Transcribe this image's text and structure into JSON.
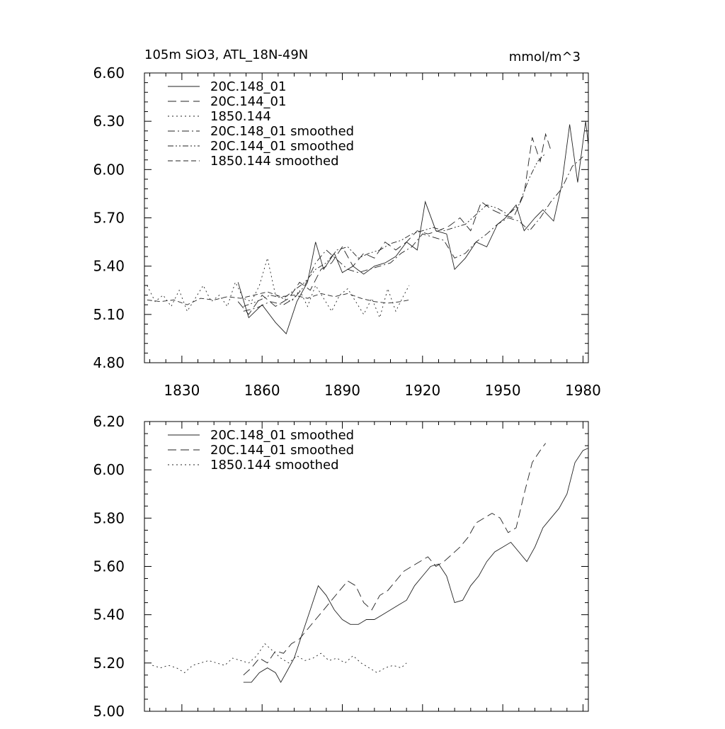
{
  "header": {
    "title": "105m SiO3, ATL_18N-49N",
    "units": "mmol/m^3"
  },
  "chart_data": [
    {
      "type": "line",
      "title": "105m SiO3, ATL_18N-49N",
      "units_label": "mmol/m^3",
      "xlim": [
        1816,
        1982
      ],
      "ylim": [
        4.8,
        6.6
      ],
      "xticks": [
        1830,
        1860,
        1890,
        1920,
        1950,
        1980
      ],
      "xtick_labels": [
        "1830",
        "1860",
        "1890",
        "1920",
        "1950",
        "1980"
      ],
      "yticks": [
        4.8,
        5.1,
        5.4,
        5.7,
        6.0,
        6.3,
        6.6
      ],
      "ytick_labels": [
        "4.80",
        "5.10",
        "5.40",
        "5.70",
        "6.00",
        "6.30",
        "6.60"
      ],
      "legend_position": "top-left",
      "series": [
        {
          "name": "20C.148_01",
          "style": "solid",
          "x": [
            1851,
            1855,
            1860,
            1865,
            1869,
            1873,
            1877,
            1880,
            1883,
            1887,
            1890,
            1894,
            1898,
            1902,
            1906,
            1910,
            1914,
            1918,
            1921,
            1925,
            1929,
            1932,
            1936,
            1940,
            1944,
            1948,
            1951,
            1955,
            1958,
            1962,
            1965,
            1969,
            1972,
            1975,
            1978,
            1981,
            1982
          ],
          "y": [
            5.3,
            5.08,
            5.16,
            5.05,
            4.98,
            5.18,
            5.3,
            5.55,
            5.38,
            5.48,
            5.36,
            5.4,
            5.35,
            5.4,
            5.42,
            5.46,
            5.55,
            5.5,
            5.8,
            5.62,
            5.6,
            5.38,
            5.45,
            5.55,
            5.52,
            5.66,
            5.7,
            5.78,
            5.62,
            5.7,
            5.75,
            5.68,
            5.9,
            6.28,
            5.92,
            6.3,
            6.15
          ]
        },
        {
          "name": "20C.144_01",
          "style": "dash",
          "x": [
            1851,
            1855,
            1860,
            1865,
            1870,
            1874,
            1878,
            1882,
            1886,
            1890,
            1894,
            1898,
            1902,
            1906,
            1910,
            1914,
            1918,
            1922,
            1926,
            1930,
            1934,
            1938,
            1942,
            1946,
            1950,
            1954,
            1958,
            1961,
            1964,
            1966,
            1968
          ],
          "y": [
            5.18,
            5.1,
            5.22,
            5.15,
            5.2,
            5.3,
            5.25,
            5.38,
            5.42,
            5.52,
            5.4,
            5.48,
            5.45,
            5.55,
            5.5,
            5.55,
            5.62,
            5.6,
            5.62,
            5.65,
            5.7,
            5.62,
            5.8,
            5.75,
            5.72,
            5.7,
            5.85,
            6.2,
            6.05,
            6.22,
            6.12
          ]
        },
        {
          "name": "1850.144",
          "style": "dot",
          "x": [
            1817,
            1820,
            1823,
            1826,
            1829,
            1832,
            1835,
            1838,
            1841,
            1844,
            1847,
            1850,
            1853,
            1856,
            1859,
            1862,
            1865,
            1868,
            1871,
            1874,
            1877,
            1880,
            1883,
            1886,
            1889,
            1892,
            1895,
            1898,
            1901,
            1904,
            1907,
            1910,
            1913,
            1915
          ],
          "y": [
            5.28,
            5.18,
            5.22,
            5.15,
            5.25,
            5.12,
            5.2,
            5.28,
            5.18,
            5.22,
            5.15,
            5.3,
            5.2,
            5.18,
            5.28,
            5.45,
            5.22,
            5.2,
            5.18,
            5.25,
            5.15,
            5.28,
            5.2,
            5.12,
            5.22,
            5.26,
            5.18,
            5.1,
            5.2,
            5.08,
            5.26,
            5.12,
            5.22,
            5.28
          ]
        },
        {
          "name": "20C.148_01 smoothed",
          "style": "dashdot",
          "x": [
            1853,
            1858,
            1863,
            1868,
            1872,
            1876,
            1880,
            1884,
            1888,
            1892,
            1896,
            1900,
            1904,
            1908,
            1912,
            1916,
            1920,
            1924,
            1928,
            1932,
            1936,
            1940,
            1944,
            1948,
            1952,
            1956,
            1960,
            1964,
            1968,
            1972,
            1976,
            1980
          ],
          "y": [
            5.12,
            5.14,
            5.18,
            5.16,
            5.2,
            5.28,
            5.42,
            5.5,
            5.44,
            5.38,
            5.36,
            5.38,
            5.4,
            5.42,
            5.48,
            5.52,
            5.6,
            5.58,
            5.56,
            5.45,
            5.48,
            5.55,
            5.6,
            5.66,
            5.7,
            5.68,
            5.62,
            5.7,
            5.8,
            5.88,
            6.02,
            6.08
          ]
        },
        {
          "name": "20C.144_01 smoothed",
          "style": "dashdotdot",
          "x": [
            1853,
            1858,
            1863,
            1868,
            1872,
            1876,
            1880,
            1884,
            1888,
            1892,
            1896,
            1900,
            1904,
            1908,
            1912,
            1916,
            1920,
            1924,
            1928,
            1932,
            1936,
            1940,
            1944,
            1948,
            1952,
            1956,
            1960,
            1963,
            1966
          ],
          "y": [
            5.15,
            5.18,
            5.22,
            5.2,
            5.25,
            5.3,
            5.38,
            5.42,
            5.5,
            5.52,
            5.45,
            5.48,
            5.5,
            5.54,
            5.56,
            5.6,
            5.62,
            5.64,
            5.62,
            5.64,
            5.66,
            5.72,
            5.78,
            5.76,
            5.72,
            5.78,
            5.95,
            6.05,
            6.1
          ]
        },
        {
          "name": "1850.144 smoothed",
          "style": "longdash",
          "x": [
            1817,
            1822,
            1827,
            1832,
            1837,
            1842,
            1847,
            1852,
            1857,
            1862,
            1867,
            1872,
            1877,
            1882,
            1887,
            1892,
            1897,
            1902,
            1907,
            1912,
            1915
          ],
          "y": [
            5.19,
            5.18,
            5.19,
            5.16,
            5.2,
            5.19,
            5.21,
            5.2,
            5.22,
            5.24,
            5.21,
            5.22,
            5.2,
            5.23,
            5.21,
            5.23,
            5.2,
            5.18,
            5.17,
            5.18,
            5.19
          ]
        }
      ]
    },
    {
      "type": "line",
      "xlim": [
        1816,
        1982
      ],
      "ylim": [
        5.0,
        6.2
      ],
      "xticks": [
        1830,
        1860,
        1890,
        1920,
        1950,
        1980
      ],
      "yticks": [
        5.0,
        5.2,
        5.4,
        5.6,
        5.8,
        6.0,
        6.2
      ],
      "ytick_labels": [
        "5.00",
        "5.20",
        "5.40",
        "5.60",
        "5.80",
        "6.00",
        "6.20"
      ],
      "legend_position": "top-left",
      "series": [
        {
          "name": "20C.148_01 smoothed",
          "style": "solid",
          "x": [
            1853,
            1856,
            1859,
            1862,
            1865,
            1867,
            1869,
            1872,
            1875,
            1878,
            1881,
            1884,
            1887,
            1890,
            1893,
            1896,
            1899,
            1902,
            1905,
            1908,
            1911,
            1914,
            1917,
            1920,
            1923,
            1926,
            1929,
            1932,
            1935,
            1938,
            1941,
            1944,
            1947,
            1950,
            1953,
            1956,
            1959,
            1962,
            1965,
            1968,
            1971,
            1974,
            1977,
            1980,
            1982
          ],
          "y": [
            5.12,
            5.12,
            5.16,
            5.18,
            5.16,
            5.12,
            5.16,
            5.22,
            5.32,
            5.42,
            5.52,
            5.48,
            5.42,
            5.38,
            5.36,
            5.36,
            5.38,
            5.38,
            5.4,
            5.42,
            5.44,
            5.46,
            5.52,
            5.56,
            5.6,
            5.61,
            5.56,
            5.45,
            5.46,
            5.52,
            5.56,
            5.62,
            5.66,
            5.68,
            5.7,
            5.66,
            5.62,
            5.68,
            5.76,
            5.8,
            5.84,
            5.9,
            6.03,
            6.08,
            6.09
          ]
        },
        {
          "name": "20C.144_01 smoothed",
          "style": "dash",
          "x": [
            1853,
            1856,
            1859,
            1862,
            1865,
            1868,
            1871,
            1874,
            1877,
            1880,
            1883,
            1886,
            1889,
            1892,
            1895,
            1898,
            1901,
            1904,
            1907,
            1910,
            1913,
            1916,
            1919,
            1922,
            1925,
            1928,
            1931,
            1934,
            1937,
            1940,
            1943,
            1946,
            1949,
            1952,
            1955,
            1958,
            1961,
            1964,
            1966
          ],
          "y": [
            5.15,
            5.18,
            5.22,
            5.2,
            5.25,
            5.24,
            5.28,
            5.3,
            5.34,
            5.38,
            5.42,
            5.46,
            5.5,
            5.54,
            5.52,
            5.45,
            5.42,
            5.48,
            5.5,
            5.54,
            5.58,
            5.6,
            5.62,
            5.64,
            5.6,
            5.62,
            5.65,
            5.68,
            5.72,
            5.78,
            5.8,
            5.82,
            5.8,
            5.74,
            5.76,
            5.9,
            6.03,
            6.08,
            6.11
          ]
        },
        {
          "name": "1850.144 smoothed",
          "style": "dot",
          "x": [
            1819,
            1822,
            1825,
            1828,
            1831,
            1834,
            1837,
            1840,
            1843,
            1846,
            1849,
            1852,
            1855,
            1858,
            1861,
            1864,
            1867,
            1870,
            1873,
            1876,
            1879,
            1882,
            1885,
            1888,
            1891,
            1894,
            1897,
            1900,
            1903,
            1906,
            1909,
            1912,
            1914
          ],
          "y": [
            5.19,
            5.18,
            5.19,
            5.18,
            5.16,
            5.19,
            5.2,
            5.21,
            5.2,
            5.19,
            5.22,
            5.21,
            5.2,
            5.23,
            5.28,
            5.25,
            5.22,
            5.2,
            5.23,
            5.21,
            5.22,
            5.24,
            5.21,
            5.22,
            5.2,
            5.23,
            5.2,
            5.18,
            5.16,
            5.18,
            5.19,
            5.18,
            5.2
          ]
        }
      ]
    }
  ]
}
